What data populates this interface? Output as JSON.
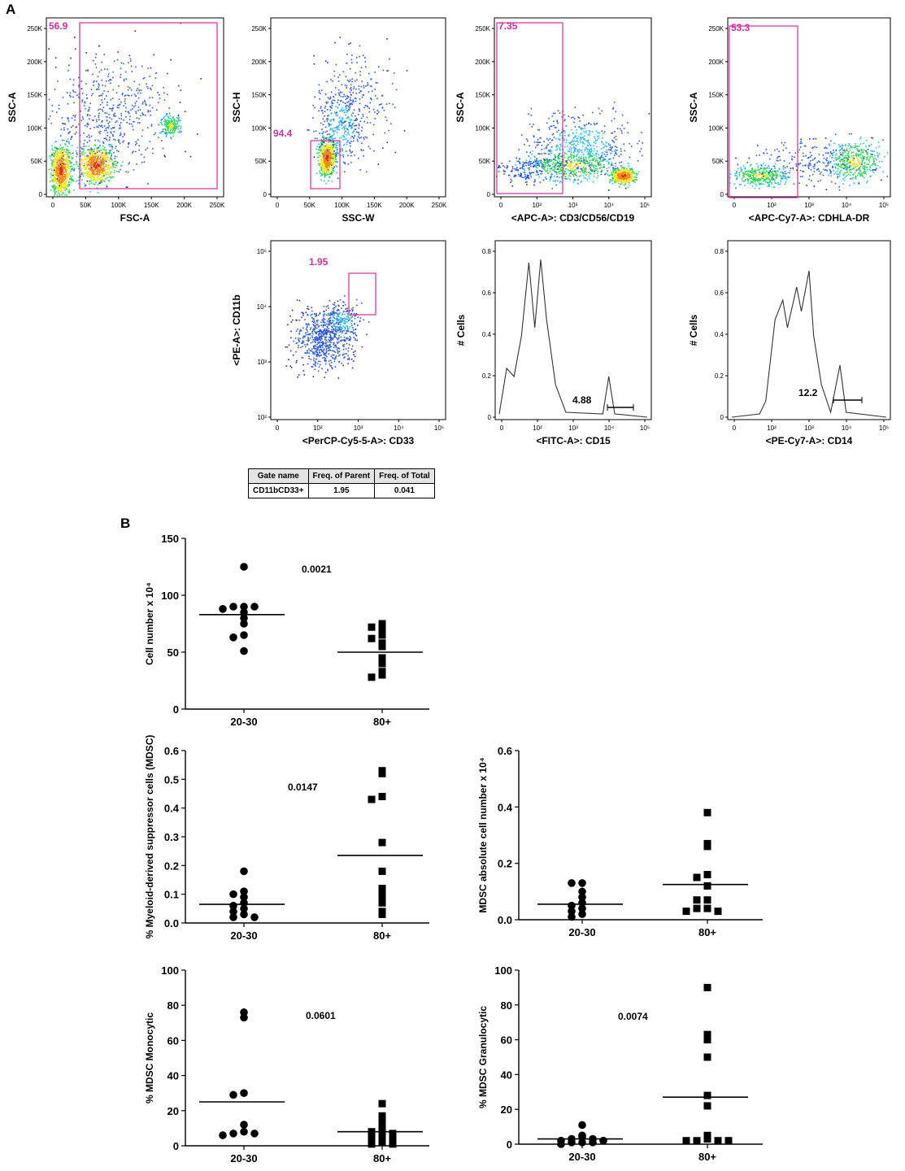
{
  "panels": {
    "a": "A",
    "b": "B"
  },
  "flow_plots": [
    {
      "id": "fsc",
      "type": "scatter-density",
      "xlabel": "FSC-A",
      "ylabel": "SSC-A",
      "y_ticks": [
        "0",
        "50K",
        "100K",
        "150K",
        "200K",
        "250K"
      ],
      "x_ticks": [
        "0",
        "50K",
        "100K",
        "150K",
        "200K",
        "250K"
      ],
      "gate_value": "56.9"
    },
    {
      "id": "ssc-w",
      "type": "scatter-density",
      "xlabel": "SSC-W",
      "ylabel": "SSC-H",
      "y_ticks": [
        "0",
        "50K",
        "100K",
        "150K",
        "200K",
        "250K"
      ],
      "x_ticks": [
        "0",
        "50K",
        "100K",
        "150K",
        "200K",
        "250K"
      ],
      "gate_value": "94.4"
    },
    {
      "id": "lineage",
      "type": "scatter-density",
      "xlabel": "<APC-A>: CD3/CD56/CD19",
      "ylabel": "SSC-A",
      "y_ticks": [
        "0",
        "50K",
        "100K",
        "150K",
        "200K",
        "250K"
      ],
      "x_ticks": [
        "0",
        "10²",
        "10³",
        "10⁴",
        "10⁵"
      ],
      "gate_value": "7.35"
    },
    {
      "id": "hla-dr",
      "type": "scatter-density",
      "xlabel": "<APC-Cy7-A>: CDHLA-DR",
      "ylabel": "SSC-A",
      "y_ticks": [
        "0",
        "50K",
        "100K",
        "150K",
        "200K",
        "250K"
      ],
      "x_ticks": [
        "0",
        "10²",
        "10³",
        "10⁴",
        "10⁵"
      ],
      "gate_value": "53.3"
    },
    {
      "id": "cd11b-cd33",
      "type": "scatter-density",
      "xlabel": "<PerCP-Cy5-5-A>: CD33",
      "ylabel": "<PE-A>: CD11b",
      "y_ticks": [
        "10²",
        "10³",
        "10⁴",
        "10⁵"
      ],
      "x_ticks": [
        "0",
        "10²",
        "10³",
        "10⁴",
        "10⁵"
      ],
      "gate_value": "1.95"
    },
    {
      "id": "cd15",
      "type": "histogram",
      "xlabel": "<FITC-A>: CD15",
      "ylabel": "# Cells",
      "y_ticks": [
        "0",
        "0.2",
        "0.4",
        "0.6",
        "0.8"
      ],
      "x_ticks": [
        "0",
        "10²",
        "10³",
        "10⁴",
        "10⁵"
      ],
      "gate_value": "4.88"
    },
    {
      "id": "cd14",
      "type": "histogram",
      "xlabel": "<PE-Cy7-A>: CD14",
      "ylabel": "# Cells",
      "y_ticks": [
        "0",
        "0.2",
        "0.4",
        "0.6",
        "0.8"
      ],
      "x_ticks": [
        "0",
        "10²",
        "10³",
        "10⁴",
        "10⁵"
      ],
      "gate_value": "12.2"
    }
  ],
  "gate_table": {
    "headers": [
      "Gate name",
      "Freq. of Parent",
      "Freq. of Total"
    ],
    "row": [
      "CD11bCD33+",
      "1.95",
      "0.041"
    ]
  },
  "chart_data": [
    {
      "type": "scatter",
      "id": "cell-number",
      "ylabel": "Cell number x 10⁴",
      "categories": [
        "20-30",
        "80+"
      ],
      "ylim": [
        0,
        150
      ],
      "yticks": [
        0,
        50,
        100,
        150
      ],
      "pvalue": "0.0021",
      "series": [
        {
          "name": "20-30",
          "marker": "circle",
          "values": [
            125,
            90,
            90,
            90,
            88,
            85,
            80,
            75,
            65,
            63,
            51
          ],
          "mean": 83
        },
        {
          "name": "80+",
          "marker": "square",
          "values": [
            75,
            72,
            70,
            65,
            62,
            58,
            55,
            45,
            40,
            33,
            30,
            28
          ],
          "mean": 50
        }
      ]
    },
    {
      "type": "scatter",
      "id": "mdsc-percent",
      "ylabel": "% Myeloid-derived suppressor cells (MDSC)",
      "categories": [
        "20-30",
        "80+"
      ],
      "ylim": [
        0,
        0.6
      ],
      "yticks": [
        0.0,
        0.1,
        0.2,
        0.3,
        0.4,
        0.5,
        0.6
      ],
      "pvalue": "0.0147",
      "series": [
        {
          "name": "20-30",
          "marker": "circle",
          "values": [
            0.18,
            0.11,
            0.1,
            0.09,
            0.07,
            0.06,
            0.05,
            0.04,
            0.03,
            0.02,
            0.02
          ],
          "mean": 0.065
        },
        {
          "name": "80+",
          "marker": "square",
          "values": [
            0.53,
            0.52,
            0.44,
            0.43,
            0.28,
            0.18,
            0.12,
            0.1,
            0.08,
            0.07,
            0.04,
            0.03
          ],
          "mean": 0.235
        }
      ]
    },
    {
      "type": "scatter",
      "id": "mdsc-absolute",
      "ylabel": "MDSC absolute cell number x 10⁴",
      "categories": [
        "20-30",
        "80+"
      ],
      "ylim": [
        0,
        0.6
      ],
      "yticks": [
        0.0,
        0.2,
        0.4,
        0.6
      ],
      "pvalue": "",
      "series": [
        {
          "name": "20-30",
          "marker": "circle",
          "values": [
            0.13,
            0.13,
            0.1,
            0.08,
            0.06,
            0.05,
            0.04,
            0.03,
            0.02,
            0.01
          ],
          "mean": 0.055
        },
        {
          "name": "80+",
          "marker": "square",
          "values": [
            0.38,
            0.27,
            0.26,
            0.16,
            0.15,
            0.12,
            0.07,
            0.07,
            0.04,
            0.04,
            0.03,
            0.03
          ],
          "mean": 0.125
        }
      ]
    },
    {
      "type": "scatter",
      "id": "mdsc-monocytic",
      "ylabel": "% MDSC Monocytic",
      "categories": [
        "20-30",
        "80+"
      ],
      "ylim": [
        0,
        100
      ],
      "yticks": [
        0,
        20,
        40,
        60,
        80,
        100
      ],
      "pvalue": "0.0601",
      "series": [
        {
          "name": "20-30",
          "marker": "circle",
          "values": [
            76,
            73,
            30,
            29,
            12,
            8,
            7,
            7,
            6
          ],
          "mean": 25
        },
        {
          "name": "80+",
          "marker": "square",
          "values": [
            24,
            17,
            13,
            10,
            8,
            8,
            7,
            5,
            4,
            3,
            2,
            1,
            1
          ],
          "mean": 8
        }
      ]
    },
    {
      "type": "scatter",
      "id": "mdsc-granulocytic",
      "ylabel": "% MDSC Granulocytic",
      "categories": [
        "20-30",
        "80+"
      ],
      "ylim": [
        0,
        100
      ],
      "yticks": [
        0,
        20,
        40,
        60,
        80,
        100
      ],
      "pvalue": "0.0074",
      "series": [
        {
          "name": "20-30",
          "marker": "circle",
          "values": [
            11,
            5,
            4,
            3,
            3,
            2,
            2,
            1,
            1,
            1,
            0
          ],
          "mean": 3
        },
        {
          "name": "80+",
          "marker": "square",
          "values": [
            90,
            63,
            60,
            50,
            28,
            22,
            5,
            3,
            2,
            2,
            2,
            2
          ],
          "mean": 27
        }
      ]
    }
  ]
}
